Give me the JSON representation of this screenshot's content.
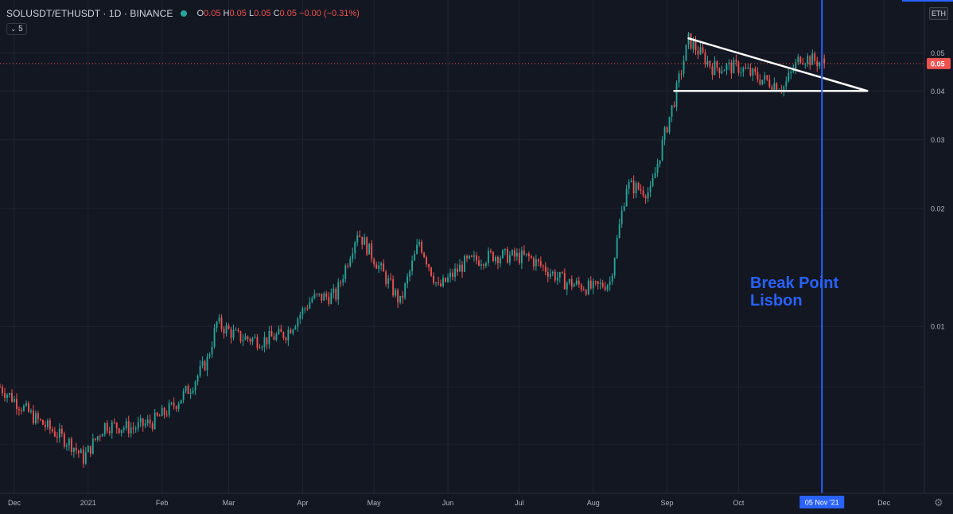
{
  "header": {
    "symbol": "SOLUSDT/ETHUSDT · 1D · BINANCE",
    "ohlc": [
      {
        "k": "O",
        "v": "0.05"
      },
      {
        "k": "H",
        "v": "0.05"
      },
      {
        "k": "L",
        "v": "0.05"
      },
      {
        "k": "C",
        "v": "0.05"
      },
      {
        "k": "",
        "v": "−0.00 (−0.31%)"
      }
    ],
    "collapse_count": "5",
    "currency": "ETH"
  },
  "colors": {
    "up": "#26a69a",
    "down": "#ef5350",
    "annotation": "#2962ff",
    "background": "#131722"
  },
  "annotation": {
    "line1": "Break Point",
    "line2": "Lisbon",
    "date_label": "05 Nov '21"
  },
  "chart_data": {
    "type": "candlestick",
    "scale": "log",
    "ylim": [
      0.00415,
      0.0622
    ],
    "xlim": [
      "2020-11-25",
      "2021-12-18"
    ],
    "price_ticks": [
      0.05,
      0.04,
      0.03,
      0.02,
      0.01
    ],
    "current_price": 0.047,
    "x_ticks": [
      {
        "label": "Dec",
        "date": "2020-12-01"
      },
      {
        "label": "2021",
        "date": "2021-01-01"
      },
      {
        "label": "Feb",
        "date": "2021-02-01"
      },
      {
        "label": "Mar",
        "date": "2021-03-01"
      },
      {
        "label": "Apr",
        "date": "2021-04-01"
      },
      {
        "label": "May",
        "date": "2021-05-01"
      },
      {
        "label": "Jun",
        "date": "2021-06-01"
      },
      {
        "label": "Jul",
        "date": "2021-07-01"
      },
      {
        "label": "Aug",
        "date": "2021-08-01"
      },
      {
        "label": "Sep",
        "date": "2021-09-01"
      },
      {
        "label": "Oct",
        "date": "2021-10-01"
      },
      {
        "label": "Dec",
        "date": "2021-12-01"
      }
    ],
    "vertical_marker": "2021-11-05",
    "trendlines": [
      {
        "from": [
          "2021-09-10",
          0.0545
        ],
        "to": [
          "2021-11-24",
          0.04
        ]
      },
      {
        "from": [
          "2021-09-04",
          0.04
        ],
        "to": [
          "2021-11-24",
          0.04
        ]
      }
    ],
    "close_path": [
      [
        "2020-11-25",
        0.007
      ],
      [
        "2020-12-10",
        0.0058
      ],
      [
        "2020-12-25",
        0.005
      ],
      [
        "2020-12-30",
        0.0046
      ],
      [
        "2021-01-08",
        0.0056
      ],
      [
        "2021-01-20",
        0.0055
      ],
      [
        "2021-01-28",
        0.0057
      ],
      [
        "2021-02-05",
        0.0062
      ],
      [
        "2021-02-13",
        0.007
      ],
      [
        "2021-02-20",
        0.0082
      ],
      [
        "2021-02-24",
        0.0102
      ],
      [
        "2021-03-05",
        0.0094
      ],
      [
        "2021-03-15",
        0.0092
      ],
      [
        "2021-03-25",
        0.0096
      ],
      [
        "2021-04-05",
        0.0118
      ],
      [
        "2021-04-15",
        0.012
      ],
      [
        "2021-04-24",
        0.0175
      ],
      [
        "2021-05-05",
        0.0136
      ],
      [
        "2021-05-12",
        0.0115
      ],
      [
        "2021-05-20",
        0.0165
      ],
      [
        "2021-05-28",
        0.0125
      ],
      [
        "2021-06-08",
        0.0145
      ],
      [
        "2021-06-20",
        0.0152
      ],
      [
        "2021-07-05",
        0.015
      ],
      [
        "2021-07-20",
        0.013
      ],
      [
        "2021-08-01",
        0.0125
      ],
      [
        "2021-08-08",
        0.013
      ],
      [
        "2021-08-15",
        0.023
      ],
      [
        "2021-08-25",
        0.022
      ],
      [
        "2021-08-31",
        0.031
      ],
      [
        "2021-09-04",
        0.038
      ],
      [
        "2021-09-10",
        0.054
      ],
      [
        "2021-09-20",
        0.046
      ],
      [
        "2021-10-01",
        0.046
      ],
      [
        "2021-10-10",
        0.043
      ],
      [
        "2021-10-20",
        0.041
      ],
      [
        "2021-10-27",
        0.049
      ],
      [
        "2021-11-06",
        0.047
      ]
    ]
  }
}
